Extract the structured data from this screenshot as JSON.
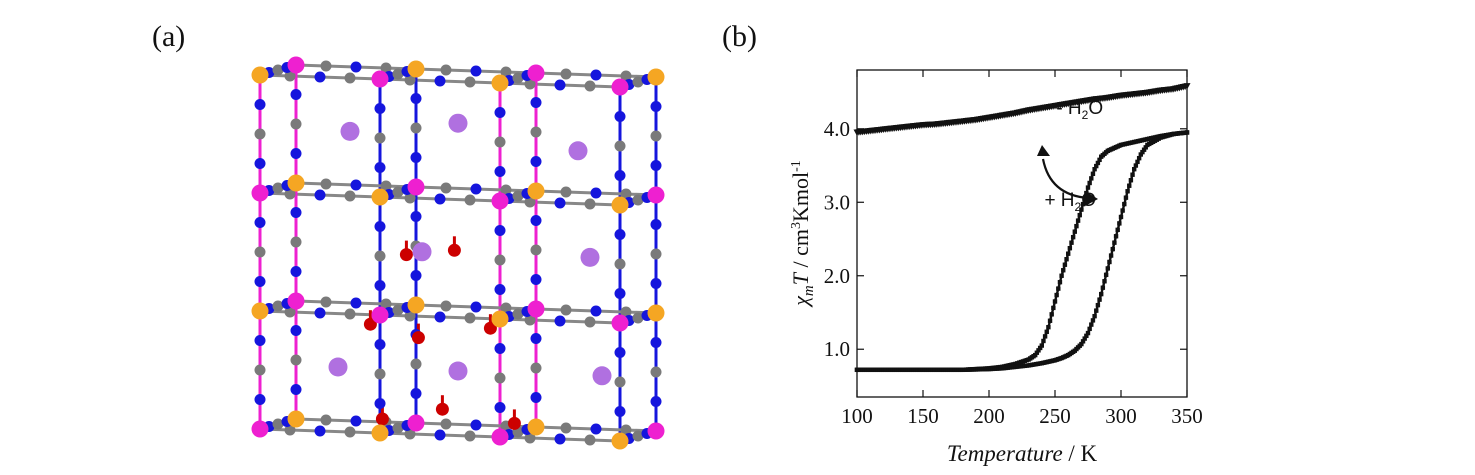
{
  "panels": {
    "a_label": "(a)",
    "b_label": "(b)"
  },
  "structure": {
    "atom_colors": {
      "metal_M1": "#ee20d0",
      "metal_M2": "#f5a623",
      "nitrogen": "#1515dd",
      "carbon": "#7a7a7a",
      "oxygen": "#cc0000",
      "cation": "#b070e0"
    },
    "bond_colors": [
      "#1515dd",
      "#ee20d0",
      "#f5a623",
      "#888888",
      "#cc0000"
    ]
  },
  "chart_data": {
    "type": "line",
    "xlabel_italic": "Temperature",
    "xlabel_unit": " / K",
    "ylabel": {
      "chi": "χ",
      "sub": "m",
      "T": "T",
      "unit1": " / cm",
      "sup1": "3",
      "unit2": "Kmol",
      "sup2": "-1"
    },
    "xlim": [
      100,
      350
    ],
    "ylim": [
      0.35,
      4.8
    ],
    "xticks": [
      100,
      150,
      200,
      250,
      300,
      350
    ],
    "xtick_labels": [
      "100",
      "150",
      "200",
      "250",
      "300",
      "350"
    ],
    "yticks": [
      1.0,
      2.0,
      3.0,
      4.0
    ],
    "ytick_labels": [
      "1.0",
      "2.0",
      "3.0",
      "4.0"
    ],
    "grid": false,
    "series": [
      {
        "marker": "triangle-down",
        "x": [
          100,
          110,
          120,
          130,
          140,
          150,
          160,
          170,
          180,
          190,
          200,
          210,
          220,
          230,
          240,
          250,
          260,
          270,
          280,
          290,
          300,
          310,
          320,
          330,
          340,
          350
        ],
        "y": [
          3.95,
          3.97,
          3.99,
          4.01,
          4.03,
          4.05,
          4.06,
          4.08,
          4.1,
          4.12,
          4.15,
          4.18,
          4.21,
          4.25,
          4.28,
          4.31,
          4.34,
          4.37,
          4.4,
          4.42,
          4.45,
          4.47,
          4.49,
          4.52,
          4.54,
          4.58
        ]
      },
      {
        "marker": "square",
        "x": [
          100,
          120,
          140,
          160,
          180,
          200,
          210,
          220,
          230,
          235,
          240,
          245,
          250,
          255,
          260,
          265,
          270,
          275,
          280,
          285,
          290,
          295,
          300,
          310,
          320,
          330,
          340,
          350
        ],
        "y": [
          0.72,
          0.72,
          0.72,
          0.72,
          0.72,
          0.74,
          0.76,
          0.8,
          0.86,
          0.92,
          1.05,
          1.3,
          1.65,
          2.0,
          2.3,
          2.6,
          2.9,
          3.2,
          3.45,
          3.62,
          3.7,
          3.74,
          3.78,
          3.82,
          3.86,
          3.9,
          3.93,
          3.95
        ]
      },
      {
        "marker": "square",
        "x": [
          100,
          120,
          140,
          160,
          180,
          200,
          210,
          220,
          230,
          240,
          245,
          250,
          255,
          260,
          265,
          270,
          275,
          280,
          285,
          290,
          295,
          300,
          305,
          310,
          315,
          320,
          330,
          340,
          350
        ],
        "y": [
          0.72,
          0.72,
          0.72,
          0.72,
          0.72,
          0.73,
          0.74,
          0.76,
          0.78,
          0.81,
          0.83,
          0.85,
          0.88,
          0.92,
          0.98,
          1.07,
          1.22,
          1.45,
          1.75,
          2.1,
          2.45,
          2.8,
          3.15,
          3.45,
          3.65,
          3.78,
          3.88,
          3.93,
          3.95
        ]
      }
    ],
    "annotations": [
      {
        "text_pre": "- H",
        "sub": "2",
        "text_post": "O",
        "x": 251,
        "y": 4.2
      },
      {
        "text_pre": "+ H",
        "sub": "2",
        "text_post": "O",
        "x": 242,
        "y": 2.95
      }
    ]
  }
}
